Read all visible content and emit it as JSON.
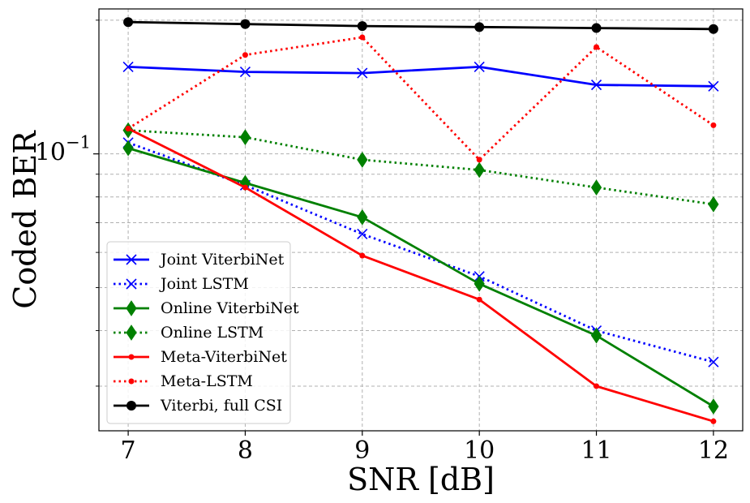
{
  "chart_data": {
    "type": "line",
    "title": "",
    "xlabel": "SNR [dB]",
    "ylabel": "Coded BER",
    "yscale": "log",
    "x": [
      7,
      8,
      9,
      10,
      11,
      12
    ],
    "xlim": [
      6.75,
      12.25
    ],
    "ylim": [
      0.0238,
      0.212
    ],
    "x_tick_labels": [
      "7",
      "8",
      "9",
      "10",
      "11",
      "12"
    ],
    "y_tick_label": {
      "base": "10",
      "exponent": "−1"
    },
    "grid": true,
    "legend_position": "lower-left",
    "series": [
      {
        "name": "Joint ViterbiNet",
        "color": "#0000ff",
        "line": "solid",
        "marker": "x",
        "values": [
          0.157,
          0.153,
          0.152,
          0.157,
          0.143,
          0.142
        ]
      },
      {
        "name": "Joint LSTM",
        "color": "#0000ff",
        "line": "dotted",
        "marker": "x",
        "values": [
          0.106,
          0.085,
          0.066,
          0.053,
          0.04,
          0.034
        ]
      },
      {
        "name": "Online ViterbiNet",
        "color": "#008000",
        "line": "solid",
        "marker": "diamond",
        "values": [
          0.103,
          0.086,
          0.072,
          0.051,
          0.039,
          0.027
        ]
      },
      {
        "name": "Online LSTM",
        "color": "#008000",
        "line": "dotted",
        "marker": "diamond",
        "values": [
          0.113,
          0.109,
          0.097,
          0.092,
          0.084,
          0.077
        ]
      },
      {
        "name": "Meta-ViterbiNet",
        "color": "#ff0000",
        "line": "solid",
        "marker": "dot",
        "values": [
          0.114,
          0.084,
          0.059,
          0.047,
          0.03,
          0.025
        ]
      },
      {
        "name": "Meta-LSTM",
        "color": "#ff0000",
        "line": "dotted",
        "marker": "dot",
        "values": [
          0.114,
          0.167,
          0.183,
          0.097,
          0.174,
          0.116
        ]
      },
      {
        "name": "Viterbi, full CSI",
        "color": "#000000",
        "line": "solid",
        "marker": "circle",
        "values": [
          0.198,
          0.196,
          0.194,
          0.193,
          0.192,
          0.191
        ]
      }
    ]
  }
}
